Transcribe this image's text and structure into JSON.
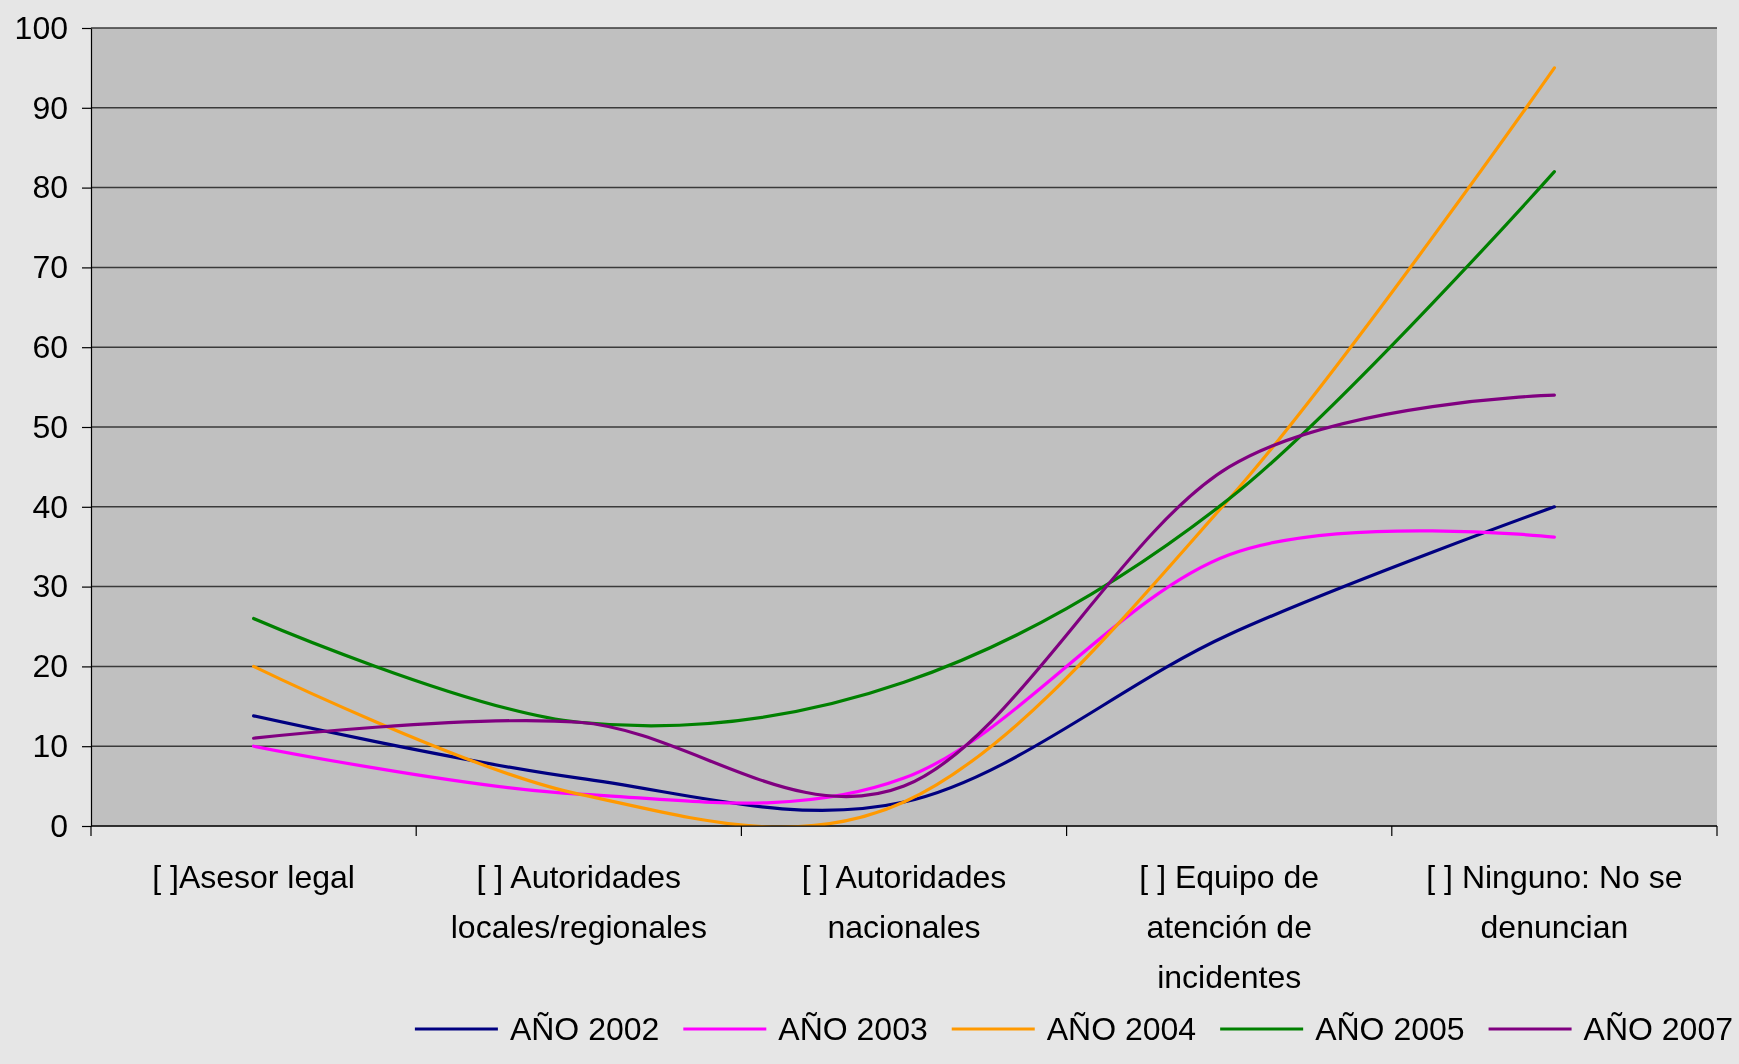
{
  "chart_data": {
    "type": "line",
    "categories": [
      "[ ]Asesor legal",
      "[ ] Autoridades locales/regionales",
      "[ ] Autoridades nacionales",
      "[ ] Equipo de atención de incidentes",
      "[ ] Ninguno: No se denuncian"
    ],
    "series": [
      {
        "name": "AÑO 2002",
        "color": "#000080",
        "values": [
          13.8,
          6,
          3,
          24,
          40
        ]
      },
      {
        "name": "AÑO 2003",
        "color": "#ff00ff",
        "values": [
          10,
          4,
          6,
          34,
          36.2
        ]
      },
      {
        "name": "AÑO 2004",
        "color": "#ff9900",
        "values": [
          20,
          4,
          3,
          41,
          95
        ]
      },
      {
        "name": "AÑO 2005",
        "color": "#008000",
        "values": [
          26,
          13,
          18,
          41,
          82
        ]
      },
      {
        "name": "AÑO 2007",
        "color": "#800080",
        "values": [
          11,
          13,
          5,
          45,
          54
        ]
      }
    ],
    "ylim": [
      0,
      100
    ],
    "yticks": [
      0,
      10,
      20,
      30,
      40,
      50,
      60,
      70,
      80,
      90,
      100
    ],
    "grid": "y",
    "legend": "bottom"
  }
}
